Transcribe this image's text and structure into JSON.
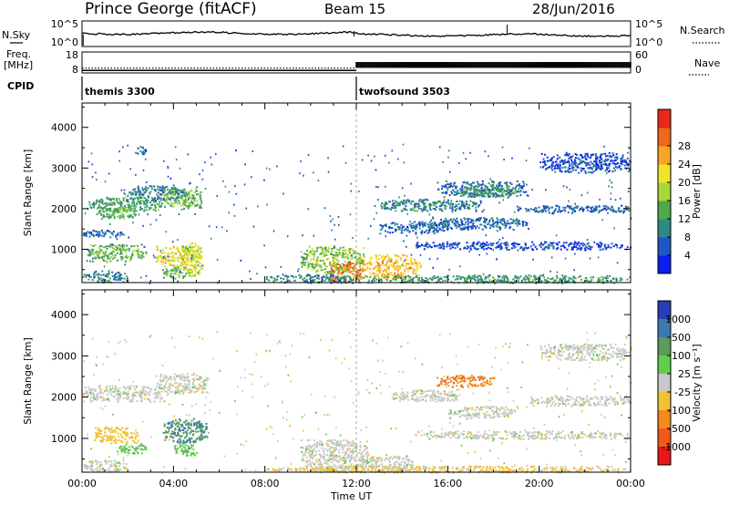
{
  "header": {
    "station": "Prince George (fitACF)",
    "beam": "Beam 15",
    "date": "28/Jun/2016"
  },
  "panels": {
    "nsky_label": "N.Sky",
    "nsearch_label": "N.Search",
    "freq_label_line1": "Freq.",
    "freq_label_line2": "[MHz]",
    "nave_label": "Nave",
    "cpid_label": "CPID"
  },
  "cpid_segments": [
    {
      "name": "themis 3300",
      "start_hour": 0
    },
    {
      "name": "twofsound 3503",
      "start_hour": 12
    }
  ],
  "chart_data": [
    {
      "type": "line",
      "name": "noise",
      "ylabel_left": "N.Sky",
      "ylabel_right": "N.Search",
      "y_tick_labels_left": [
        "10^5",
        "10^0"
      ],
      "y_tick_labels_right": [
        "10^5",
        "10^0"
      ],
      "xlim": [
        0,
        24
      ]
    },
    {
      "type": "line",
      "name": "frequency",
      "ylabel_left": "Freq. [MHz]",
      "ylabel_right": "Nave",
      "yticks_left": [
        8,
        18
      ],
      "yticks_right": [
        0,
        60
      ],
      "segments": [
        {
          "x": [
            0,
            12
          ],
          "freq_mhz": 10.5,
          "nave": 18
        },
        {
          "x": [
            12,
            24
          ],
          "freq_mhz": [
            10.5,
            13
          ],
          "nave": 40
        }
      ]
    },
    {
      "type": "heatmap",
      "name": "power",
      "ylabel": "Slant Range [km]",
      "colorbar_label": "Power [dB]",
      "colorbar_ticks": [
        4,
        8,
        12,
        16,
        20,
        24,
        28
      ],
      "colorbar_colors": [
        "#0b1ef0",
        "#1f55c6",
        "#2e8a83",
        "#4caa4a",
        "#a9d63a",
        "#f2e22a",
        "#f7a623",
        "#f06818",
        "#e8281a"
      ],
      "ylim": [
        180,
        4600
      ],
      "yticks": [
        1000,
        2000,
        3000,
        4000
      ],
      "xlim": [
        0,
        24
      ],
      "blobs": [
        {
          "x": [
            0.2,
            3.5
          ],
          "y": [
            1950,
            2300
          ],
          "db": 12
        },
        {
          "x": [
            0.6,
            2.4
          ],
          "y": [
            1750,
            2050
          ],
          "db": 14
        },
        {
          "x": [
            2.0,
            4.5
          ],
          "y": [
            2200,
            2600
          ],
          "db": 10
        },
        {
          "x": [
            3.5,
            5.2
          ],
          "y": [
            2000,
            2500
          ],
          "db": 14
        },
        {
          "x": [
            2.2,
            2.8
          ],
          "y": [
            3350,
            3550
          ],
          "db": 8
        },
        {
          "x": [
            0.0,
            1.8
          ],
          "y": [
            1300,
            1500
          ],
          "db": 8
        },
        {
          "x": [
            0.2,
            2.8
          ],
          "y": [
            700,
            1150
          ],
          "db": 14
        },
        {
          "x": [
            3.2,
            5.2
          ],
          "y": [
            600,
            1100
          ],
          "db": 20
        },
        {
          "x": [
            0.0,
            2.0
          ],
          "y": [
            200,
            500
          ],
          "db": 10
        },
        {
          "x": [
            3.5,
            4.8
          ],
          "y": [
            300,
            600
          ],
          "db": 14
        },
        {
          "x": [
            4.3,
            5.3
          ],
          "y": [
            350,
            1200
          ],
          "db": 18
        },
        {
          "x": [
            9.5,
            12.3
          ],
          "y": [
            400,
            1100
          ],
          "db": 16
        },
        {
          "x": [
            10.8,
            12.3
          ],
          "y": [
            200,
            700
          ],
          "db": 26
        },
        {
          "x": [
            12.2,
            14.8
          ],
          "y": [
            300,
            900
          ],
          "db": 22
        },
        {
          "x": [
            8.0,
            12.0
          ],
          "y": [
            180,
            400
          ],
          "db": 10
        },
        {
          "x": [
            12.0,
            24.0
          ],
          "y": [
            180,
            380
          ],
          "db": 12
        },
        {
          "x": [
            12.8,
            17.5
          ],
          "y": [
            1950,
            2250
          ],
          "db": 10
        },
        {
          "x": [
            15.5,
            19.5
          ],
          "y": [
            2300,
            2700
          ],
          "db": 8
        },
        {
          "x": [
            15.0,
            19.5
          ],
          "y": [
            1500,
            1800
          ],
          "db": 8
        },
        {
          "x": [
            19.0,
            24.0
          ],
          "y": [
            1900,
            2100
          ],
          "db": 8
        },
        {
          "x": [
            14.5,
            24.0
          ],
          "y": [
            1000,
            1200
          ],
          "db": 6
        },
        {
          "x": [
            16.5,
            19.0
          ],
          "y": [
            2300,
            2600
          ],
          "db": 12
        },
        {
          "x": [
            20.0,
            24.0
          ],
          "y": [
            2900,
            3400
          ],
          "db": 6
        },
        {
          "x": [
            13.0,
            16.0
          ],
          "y": [
            1400,
            1700
          ],
          "db": 8
        }
      ]
    },
    {
      "type": "heatmap",
      "name": "velocity",
      "ylabel": "Slant Range [km]",
      "xlabel": "Time UT",
      "colorbar_label": "Velocity [m s⁻¹]",
      "colorbar_ticks": [
        1000,
        500,
        100,
        25,
        -25,
        -100,
        -500,
        -1000
      ],
      "colorbar_colors": [
        "#2a3db8",
        "#3a7ab0",
        "#5b9b5b",
        "#5fce4a",
        "#c8c8c8",
        "#f1c232",
        "#f28a1e",
        "#ee5a1a",
        "#e81818"
      ],
      "ylim": [
        180,
        4600
      ],
      "yticks": [
        1000,
        2000,
        3000,
        4000
      ],
      "xlim": [
        0,
        24
      ],
      "xticks": [
        "00:00",
        "04:00",
        "08:00",
        "12:00",
        "16:00",
        "20:00",
        "00:00"
      ],
      "blobs": [
        {
          "x": [
            0.0,
            3.5
          ],
          "y": [
            1900,
            2300
          ],
          "v": 0
        },
        {
          "x": [
            3.2,
            5.5
          ],
          "y": [
            2100,
            2600
          ],
          "v": 0
        },
        {
          "x": [
            0.5,
            2.5
          ],
          "y": [
            900,
            1300
          ],
          "v": -60
        },
        {
          "x": [
            1.5,
            2.8
          ],
          "y": [
            650,
            900
          ],
          "v": 80
        },
        {
          "x": [
            3.5,
            5.5
          ],
          "y": [
            900,
            1500
          ],
          "v": 300
        },
        {
          "x": [
            4.0,
            5.0
          ],
          "y": [
            600,
            900
          ],
          "v": 80
        },
        {
          "x": [
            0.0,
            2.0
          ],
          "y": [
            200,
            500
          ],
          "v": 0
        },
        {
          "x": [
            9.5,
            12.5
          ],
          "y": [
            200,
            1000
          ],
          "v": 0
        },
        {
          "x": [
            12.0,
            14.5
          ],
          "y": [
            200,
            600
          ],
          "v": 0
        },
        {
          "x": [
            8.0,
            24.0
          ],
          "y": [
            180,
            350
          ],
          "v": -40
        },
        {
          "x": [
            13.5,
            16.5
          ],
          "y": [
            1900,
            2200
          ],
          "v": 0
        },
        {
          "x": [
            15.5,
            18.0
          ],
          "y": [
            2250,
            2550
          ],
          "v": -250
        },
        {
          "x": [
            16.0,
            19.0
          ],
          "y": [
            1500,
            1800
          ],
          "v": 0
        },
        {
          "x": [
            19.5,
            24.0
          ],
          "y": [
            1800,
            2050
          ],
          "v": 0
        },
        {
          "x": [
            14.5,
            24.0
          ],
          "y": [
            1000,
            1200
          ],
          "v": 0
        },
        {
          "x": [
            20.0,
            24.0
          ],
          "y": [
            2900,
            3300
          ],
          "v": 0
        }
      ]
    }
  ],
  "time_axis": {
    "label": "Time UT",
    "ticks": [
      "00:00",
      "04:00",
      "08:00",
      "12:00",
      "16:00",
      "20:00",
      "00:00"
    ]
  }
}
